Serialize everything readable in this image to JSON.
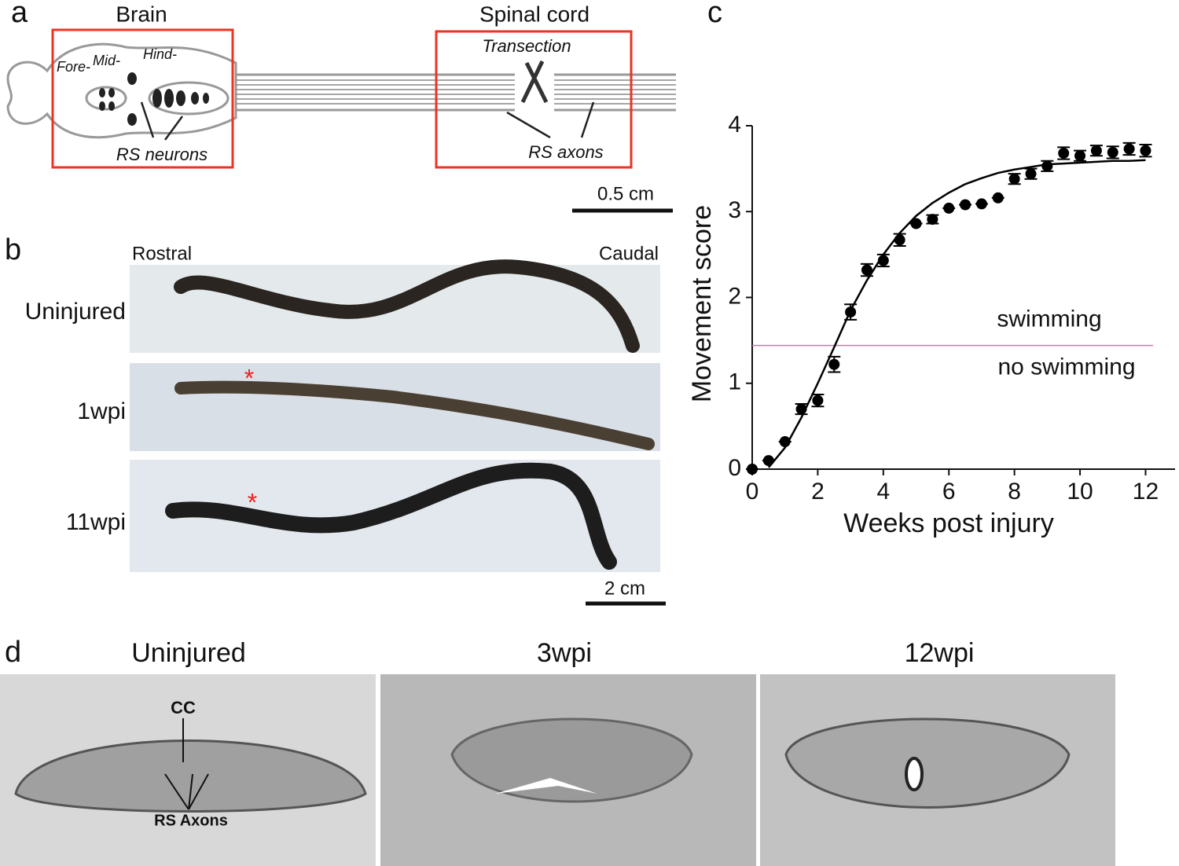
{
  "panel_a": {
    "label": "a",
    "brain": "Brain",
    "spinal_cord": "Spinal cord",
    "fore": "Fore-",
    "mid": "Mid-",
    "hind": "Hind-",
    "transection": "Transection",
    "rs_neurons": "RS neurons",
    "rs_axons": "RS axons",
    "scale": "0.5 cm"
  },
  "panel_b": {
    "label": "b",
    "rostral": "Rostral",
    "caudal": "Caudal",
    "rows": [
      "Uninjured",
      "1wpi",
      "11wpi"
    ],
    "star_1": "*",
    "star_2": "*",
    "scale": "2 cm"
  },
  "panel_d": {
    "label": "d",
    "titles": [
      "Uninjured",
      "3wpi",
      "12wpi"
    ],
    "cc": "CC",
    "rs_axons": "RS Axons"
  },
  "chart_data": {
    "type": "scatter",
    "panel_label": "c",
    "xlabel": "Weeks post injury",
    "ylabel": "Movement score",
    "x": [
      0,
      0.5,
      1,
      1.5,
      2,
      2.5,
      3,
      3.5,
      4,
      4.5,
      5,
      5.5,
      6,
      6.5,
      7,
      7.5,
      8,
      8.5,
      9,
      9.5,
      10,
      10.5,
      11,
      11.5,
      12
    ],
    "series": [
      {
        "color": "#000000",
        "values": [
          0,
          0.1,
          0.32,
          0.7,
          0.8,
          1.22,
          1.83,
          2.32,
          2.43,
          2.67,
          2.86,
          2.91,
          3.04,
          3.08,
          3.09,
          3.16,
          3.38,
          3.44,
          3.53,
          3.68,
          3.65,
          3.71,
          3.69,
          3.73,
          3.71
        ],
        "errors": [
          0,
          0,
          0,
          0.06,
          0.07,
          0.09,
          0.09,
          0.07,
          0.07,
          0.07,
          0,
          0.05,
          0,
          0,
          0,
          0,
          0.06,
          0.06,
          0.06,
          0.07,
          0.06,
          0.06,
          0.07,
          0.07,
          0.07
        ]
      },
      {
        "type": "line",
        "color": "#000000",
        "values": [
          null,
          0.02,
          0.25,
          0.6,
          1.0,
          1.42,
          1.85,
          2.2,
          2.5,
          2.75,
          2.95,
          3.1,
          3.22,
          3.32,
          3.39,
          3.45,
          3.49,
          3.52,
          3.55,
          3.56,
          3.57,
          3.58,
          3.59,
          3.59,
          3.6
        ]
      }
    ],
    "threshold": 1.44,
    "threshold_color": "#c47aa8",
    "threshold_above": "swimming",
    "threshold_below": "no swimming",
    "xlim": [
      0,
      12.9
    ],
    "ylim": [
      0,
      4
    ],
    "xticks": [
      0,
      2,
      4,
      6,
      8,
      10,
      12
    ],
    "yticks": [
      0,
      1,
      2,
      3,
      4
    ]
  }
}
